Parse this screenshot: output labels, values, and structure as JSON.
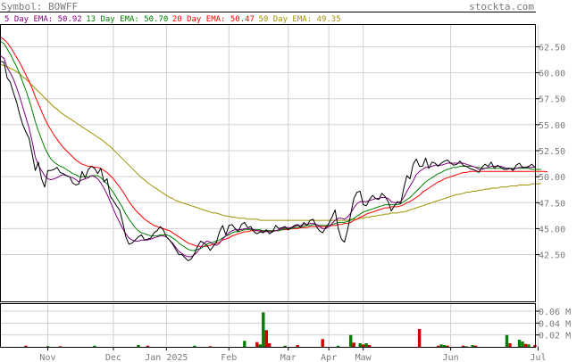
{
  "header": {
    "symbol_text": "Symbol: BOWFF",
    "site": "stockta.com"
  },
  "legend": [
    {
      "text": "5 Day EMA: 50.92",
      "color": "#800080"
    },
    {
      "text": "13 Day EMA: 50.70",
      "color": "#008000"
    },
    {
      "text": "20 Day EMA: 50.47",
      "color": "#ff0000"
    },
    {
      "text": "50 Day EMA: 49.35",
      "color": "#a09000"
    }
  ],
  "chart_data": {
    "type": "line",
    "price": {
      "ylim": [
        38.0,
        64.6
      ],
      "yticks": [
        {
          "v": 62.5,
          "label": "62.50"
        },
        {
          "v": 60.0,
          "label": "60.00"
        },
        {
          "v": 57.5,
          "label": "57.50"
        },
        {
          "v": 55.0,
          "label": "55.00"
        },
        {
          "v": 52.5,
          "label": "52.50"
        },
        {
          "v": 50.0,
          "label": "50.00"
        },
        {
          "v": 47.5,
          "label": "47.50"
        },
        {
          "v": 45.0,
          "label": "45.00"
        },
        {
          "v": 42.5,
          "label": "42.50"
        }
      ],
      "xticks": [
        {
          "i": 15,
          "label": "Nov"
        },
        {
          "i": 36,
          "label": "Dec"
        },
        {
          "i": 53,
          "label": "Jan 2025"
        },
        {
          "i": 73,
          "label": "Feb"
        },
        {
          "i": 92,
          "label": "Mar"
        },
        {
          "i": 105,
          "label": "Apr"
        },
        {
          "i": 116,
          "label": "Maw"
        },
        {
          "i": 144,
          "label": "Jun"
        },
        {
          "i": 172,
          "label": "Jul"
        }
      ],
      "close": [
        61.1,
        61.0,
        59.5,
        59.1,
        58.1,
        57.2,
        56.0,
        55.0,
        54.3,
        53.7,
        52.2,
        50.6,
        51.4,
        49.8,
        49.0,
        50.6,
        50.6,
        50.7,
        50.9,
        50.4,
        50.3,
        50.1,
        50.0,
        49.4,
        49.2,
        49.3,
        50.5,
        49.9,
        50.7,
        51.0,
        50.8,
        50.3,
        50.8,
        49.5,
        49.8,
        48.1,
        47.7,
        47.2,
        46.8,
        45.6,
        44.2,
        43.5,
        43.6,
        43.9,
        44.2,
        44.4,
        43.9,
        44.0,
        44.1,
        44.6,
        44.8,
        45.2,
        44.9,
        44.2,
        43.9,
        43.5,
        43.0,
        42.5,
        42.5,
        42.2,
        41.9,
        42.1,
        42.6,
        43.3,
        43.8,
        43.6,
        43.4,
        42.9,
        43.3,
        43.7,
        44.7,
        45.3,
        44.4,
        45.3,
        45.4,
        45.0,
        44.7,
        45.4,
        45.6,
        45.1,
        45.2,
        44.7,
        44.5,
        44.7,
        44.6,
        44.9,
        44.5,
        44.7,
        45.3,
        45.0,
        45.1,
        45.2,
        44.9,
        45.1,
        45.3,
        45.4,
        45.1,
        45.6,
        45.3,
        45.8,
        45.9,
        45.2,
        44.8,
        44.6,
        45.1,
        45.5,
        46.1,
        46.8,
        45.0,
        44.0,
        43.7,
        44.9,
        46.4,
        47.9,
        48.5,
        48.6,
        47.3,
        47.2,
        47.8,
        48.2,
        47.9,
        47.8,
        48.4,
        48.1,
        47.6,
        46.7,
        47.2,
        47.6,
        47.4,
        48.9,
        50.1,
        49.8,
        51.2,
        51.7,
        51.0,
        51.0,
        51.8,
        50.8,
        51.4,
        51.3,
        51.0,
        51.3,
        51.5,
        51.6,
        51.3,
        51.1,
        51.2,
        51.5,
        51.1,
        51.0,
        50.8,
        50.7,
        50.6,
        50.4,
        50.9,
        51.2,
        51.0,
        51.4,
        50.8,
        51.1,
        50.9,
        50.7,
        50.7,
        50.8,
        50.6,
        51.1,
        51.3,
        50.9,
        50.9,
        51.0,
        51.2,
        50.9
      ],
      "ema5": [
        61.6,
        61.4,
        60.5,
        60.0,
        59.4,
        58.6,
        57.7,
        56.7,
        55.7,
        54.7,
        53.4,
        51.9,
        51.1,
        50.6,
        50.1,
        49.8,
        49.7,
        49.8,
        49.9,
        50.1,
        50.2,
        50.1,
        50.0,
        49.9,
        49.7,
        49.5,
        49.7,
        49.8,
        49.9,
        50.1,
        50.0,
        49.8,
        49.4,
        48.9,
        48.3,
        47.6,
        46.9,
        46.2,
        45.6,
        45.0,
        44.5,
        44.1,
        43.9,
        43.8,
        43.8,
        43.9,
        43.9,
        43.9,
        44.0,
        44.1,
        44.2,
        44.3,
        44.3,
        44.2,
        43.9,
        43.6,
        43.2,
        42.8,
        42.6,
        42.4,
        42.3,
        42.3,
        42.5,
        42.8,
        43.2,
        43.6,
        43.8,
        43.7,
        43.5,
        43.4,
        43.6,
        44.0,
        44.3,
        44.6,
        44.8,
        44.9,
        44.9,
        44.9,
        45.0,
        45.0,
        45.0,
        44.9,
        44.8,
        44.8,
        44.7,
        44.7,
        44.7,
        44.7,
        44.8,
        44.9,
        45.0,
        45.1,
        45.1,
        45.1,
        45.2,
        45.3,
        45.3,
        45.4,
        45.4,
        45.5,
        45.5,
        45.4,
        45.2,
        45.0,
        45.0,
        45.2,
        45.5,
        45.8,
        46.0,
        46.0,
        45.9,
        46.1,
        46.5,
        47.0,
        47.4,
        47.6,
        47.6,
        47.6,
        47.7,
        47.8,
        47.9,
        47.9,
        48.0,
        48.0,
        47.9,
        47.6,
        47.5,
        47.5,
        47.6,
        48.0,
        48.6,
        49.1,
        49.6,
        50.2,
        50.5,
        50.7,
        50.9,
        50.9,
        51.0,
        51.1,
        51.1,
        51.1,
        51.2,
        51.3,
        51.3,
        51.3,
        51.3,
        51.3,
        51.3,
        51.2,
        51.1,
        51.0,
        50.9,
        50.7,
        50.7,
        50.8,
        50.9,
        51.0,
        51.0,
        51.0,
        51.0,
        50.9,
        50.8,
        50.8,
        50.7,
        50.8,
        50.9,
        50.9,
        50.9,
        50.9,
        50.9,
        50.92
      ],
      "ema13": [
        63.0,
        62.8,
        62.3,
        61.8,
        61.2,
        60.6,
        59.9,
        59.1,
        58.3,
        57.4,
        56.4,
        55.3,
        54.4,
        53.6,
        52.8,
        52.2,
        51.7,
        51.4,
        51.2,
        51.0,
        50.9,
        50.7,
        50.5,
        50.3,
        50.2,
        50.0,
        50.0,
        50.0,
        50.0,
        50.1,
        50.1,
        50.1,
        49.9,
        49.6,
        49.3,
        48.9,
        48.5,
        48.0,
        47.5,
        47.0,
        46.4,
        45.9,
        45.5,
        45.1,
        44.8,
        44.6,
        44.5,
        44.4,
        44.3,
        44.3,
        44.3,
        44.4,
        44.4,
        44.4,
        44.3,
        44.1,
        43.9,
        43.6,
        43.4,
        43.2,
        43.0,
        42.9,
        42.9,
        43.0,
        43.1,
        43.3,
        43.5,
        43.6,
        43.7,
        43.8,
        43.9,
        44.1,
        44.3,
        44.4,
        44.6,
        44.7,
        44.7,
        44.8,
        44.9,
        44.9,
        44.9,
        44.9,
        44.9,
        44.9,
        44.8,
        44.8,
        44.8,
        44.8,
        44.8,
        44.8,
        44.9,
        45.0,
        45.0,
        45.0,
        45.1,
        45.1,
        45.2,
        45.2,
        45.3,
        45.3,
        45.4,
        45.4,
        45.3,
        45.3,
        45.3,
        45.3,
        45.4,
        45.5,
        45.6,
        45.6,
        45.6,
        45.7,
        45.8,
        46.0,
        46.2,
        46.4,
        46.6,
        46.7,
        46.8,
        46.9,
        47.0,
        47.1,
        47.2,
        47.3,
        47.3,
        47.3,
        47.3,
        47.3,
        47.4,
        47.6,
        47.8,
        48.0,
        48.3,
        48.6,
        48.9,
        49.2,
        49.5,
        49.7,
        49.9,
        50.1,
        50.3,
        50.4,
        50.6,
        50.7,
        50.8,
        50.9,
        50.9,
        51.0,
        51.0,
        51.0,
        51.0,
        51.0,
        50.9,
        50.9,
        50.8,
        50.8,
        50.8,
        50.8,
        50.8,
        50.8,
        50.8,
        50.8,
        50.8,
        50.8,
        50.8,
        50.8,
        50.8,
        50.8,
        50.8,
        50.8,
        50.7,
        50.7,
        50.7,
        50.7
      ],
      "ema20": [
        63.4,
        63.2,
        62.9,
        62.5,
        62.0,
        61.5,
        61.0,
        60.4,
        59.8,
        59.2,
        58.5,
        57.7,
        57.0,
        56.3,
        55.6,
        55.0,
        54.5,
        54.0,
        53.6,
        53.2,
        52.8,
        52.5,
        52.2,
        51.9,
        51.6,
        51.4,
        51.2,
        51.1,
        51.0,
        51.0,
        50.9,
        50.9,
        50.8,
        50.6,
        50.4,
        50.1,
        49.8,
        49.4,
        49.0,
        48.6,
        48.1,
        47.6,
        47.2,
        46.8,
        46.5,
        46.2,
        45.9,
        45.7,
        45.5,
        45.3,
        45.2,
        45.1,
        45.0,
        44.9,
        44.8,
        44.6,
        44.4,
        44.2,
        44.0,
        43.8,
        43.6,
        43.5,
        43.4,
        43.3,
        43.3,
        43.3,
        43.3,
        43.4,
        43.5,
        43.6,
        43.7,
        43.9,
        44.0,
        44.1,
        44.3,
        44.4,
        44.5,
        44.6,
        44.7,
        44.7,
        44.8,
        44.8,
        44.8,
        44.8,
        44.8,
        44.8,
        44.8,
        44.8,
        44.8,
        44.8,
        44.9,
        44.9,
        44.9,
        45.0,
        45.0,
        45.0,
        45.1,
        45.1,
        45.1,
        45.2,
        45.2,
        45.2,
        45.2,
        45.2,
        45.2,
        45.2,
        45.3,
        45.3,
        45.4,
        45.4,
        45.5,
        45.5,
        45.6,
        45.8,
        45.9,
        46.1,
        46.2,
        46.4,
        46.5,
        46.6,
        46.7,
        46.8,
        46.9,
        47.0,
        47.0,
        47.1,
        47.1,
        47.1,
        47.2,
        47.3,
        47.5,
        47.6,
        47.8,
        48.0,
        48.2,
        48.5,
        48.7,
        48.9,
        49.1,
        49.3,
        49.5,
        49.6,
        49.8,
        49.9,
        50.0,
        50.1,
        50.2,
        50.3,
        50.4,
        50.4,
        50.5,
        50.5,
        50.5,
        50.5,
        50.5,
        50.5,
        50.5,
        50.5,
        50.5,
        50.5,
        50.5,
        50.5,
        50.5,
        50.5,
        50.5,
        50.5,
        50.5,
        50.5,
        50.5,
        50.5,
        50.5,
        50.5,
        50.5,
        50.5,
        50.5,
        50.47
      ],
      "ema50": [
        60.8,
        60.7,
        60.6,
        60.4,
        60.3,
        60.1,
        59.9,
        59.6,
        59.4,
        59.1,
        58.8,
        58.5,
        58.2,
        57.9,
        57.6,
        57.3,
        57.0,
        56.7,
        56.5,
        56.2,
        56.0,
        55.8,
        55.6,
        55.4,
        55.2,
        55.0,
        54.8,
        54.6,
        54.4,
        54.2,
        54.0,
        53.8,
        53.6,
        53.4,
        53.1,
        52.9,
        52.6,
        52.3,
        52.0,
        51.7,
        51.4,
        51.1,
        50.8,
        50.5,
        50.2,
        49.9,
        49.7,
        49.4,
        49.2,
        49.0,
        48.8,
        48.6,
        48.4,
        48.2,
        48.0,
        47.9,
        47.7,
        47.6,
        47.5,
        47.4,
        47.3,
        47.2,
        47.1,
        47.0,
        46.9,
        46.8,
        46.7,
        46.6,
        46.5,
        46.5,
        46.4,
        46.3,
        46.2,
        46.2,
        46.1,
        46.1,
        46.0,
        46.0,
        46.0,
        45.9,
        45.9,
        45.9,
        45.9,
        45.8,
        45.8,
        45.8,
        45.8,
        45.8,
        45.8,
        45.8,
        45.8,
        45.8,
        45.8,
        45.8,
        45.8,
        45.8,
        45.8,
        45.8,
        45.8,
        45.8,
        45.8,
        45.8,
        45.8,
        45.8,
        45.8,
        45.8,
        45.8,
        45.8,
        45.8,
        45.8,
        45.8,
        45.8,
        45.9,
        45.9,
        45.9,
        46.0,
        46.0,
        46.1,
        46.1,
        46.2,
        46.2,
        46.3,
        46.3,
        46.4,
        46.4,
        46.5,
        46.5,
        46.5,
        46.6,
        46.6,
        46.7,
        46.8,
        46.9,
        47.0,
        47.1,
        47.2,
        47.3,
        47.4,
        47.5,
        47.6,
        47.7,
        47.8,
        47.9,
        48.0,
        48.1,
        48.2,
        48.3,
        48.3,
        48.4,
        48.5,
        48.5,
        48.6,
        48.6,
        48.7,
        48.7,
        48.8,
        48.8,
        48.9,
        48.9,
        48.9,
        49.0,
        49.0,
        49.0,
        49.1,
        49.1,
        49.1,
        49.2,
        49.2,
        49.2,
        49.2,
        49.3,
        49.3,
        49.3,
        49.35
      ]
    },
    "volume": {
      "ylim": [
        0,
        0.072
      ],
      "yticks": [
        {
          "v": 0.06,
          "label": "0.06 M"
        },
        {
          "v": 0.04,
          "label": "0.04 M"
        },
        {
          "v": 0.02,
          "label": "0.02 M"
        }
      ],
      "bars": [
        {
          "i": 8,
          "v": 0.002,
          "up": false
        },
        {
          "i": 15,
          "v": 0.001,
          "up": true
        },
        {
          "i": 19,
          "v": 0.001,
          "up": false
        },
        {
          "i": 30,
          "v": 0.002,
          "up": true
        },
        {
          "i": 44,
          "v": 0.003,
          "up": true
        },
        {
          "i": 47,
          "v": 0.002,
          "up": false
        },
        {
          "i": 62,
          "v": 0.002,
          "up": true
        },
        {
          "i": 67,
          "v": 0.001,
          "up": false
        },
        {
          "i": 78,
          "v": 0.01,
          "up": true
        },
        {
          "i": 82,
          "v": 0.008,
          "up": false
        },
        {
          "i": 83,
          "v": 0.004,
          "up": true
        },
        {
          "i": 84,
          "v": 0.058,
          "up": true
        },
        {
          "i": 85,
          "v": 0.028,
          "up": false
        },
        {
          "i": 86,
          "v": 0.006,
          "up": false
        },
        {
          "i": 91,
          "v": 0.002,
          "up": true
        },
        {
          "i": 95,
          "v": 0.003,
          "up": false
        },
        {
          "i": 103,
          "v": 0.013,
          "up": false
        },
        {
          "i": 108,
          "v": 0.002,
          "up": true
        },
        {
          "i": 112,
          "v": 0.02,
          "up": true
        },
        {
          "i": 113,
          "v": 0.007,
          "up": false
        },
        {
          "i": 115,
          "v": 0.006,
          "up": true
        },
        {
          "i": 116,
          "v": 0.004,
          "up": false
        },
        {
          "i": 117,
          "v": 0.006,
          "up": true
        },
        {
          "i": 118,
          "v": 0.003,
          "up": false
        },
        {
          "i": 134,
          "v": 0.03,
          "up": false
        },
        {
          "i": 140,
          "v": 0.002,
          "up": false
        },
        {
          "i": 141,
          "v": 0.004,
          "up": true
        },
        {
          "i": 142,
          "v": 0.003,
          "up": true
        },
        {
          "i": 143,
          "v": 0.002,
          "up": false
        },
        {
          "i": 148,
          "v": 0.002,
          "up": false
        },
        {
          "i": 149,
          "v": 0.001,
          "up": true
        },
        {
          "i": 151,
          "v": 0.003,
          "up": true
        },
        {
          "i": 152,
          "v": 0.002,
          "up": false
        },
        {
          "i": 162,
          "v": 0.02,
          "up": true
        },
        {
          "i": 163,
          "v": 0.006,
          "up": false
        },
        {
          "i": 166,
          "v": 0.012,
          "up": true
        },
        {
          "i": 167,
          "v": 0.009,
          "up": true
        },
        {
          "i": 168,
          "v": 0.005,
          "up": false
        },
        {
          "i": 169,
          "v": 0.004,
          "up": true
        },
        {
          "i": 171,
          "v": 0.003,
          "up": false
        }
      ]
    },
    "grid": true,
    "colors": {
      "close": "#000000",
      "up": "#008000",
      "down": "#cc0000",
      "grid": "#d0d0d0",
      "frame": "#000000"
    }
  }
}
